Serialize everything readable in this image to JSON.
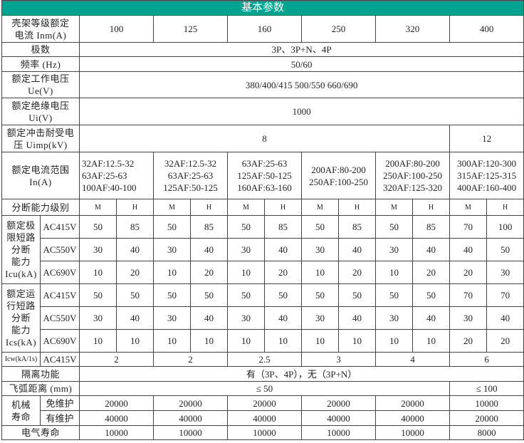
{
  "title": "基本参数",
  "frame": {
    "label": "壳架等级额定\n电流 Inm(A)",
    "values": [
      "100",
      "125",
      "160",
      "250",
      "320",
      "400"
    ]
  },
  "poles": {
    "label": "极数",
    "value": "3P、3P+N、4P"
  },
  "frequency": {
    "label": "频率 (Hz)",
    "value": "50/60"
  },
  "ue": {
    "label": "额定工作电压\nUe(V)",
    "value": "380/400/415     500/550     660/690"
  },
  "ui": {
    "label": "额定绝缘电压\nUi(V)",
    "value": "1000"
  },
  "uimp": {
    "label": "额定冲击耐受电\n压 Uimp(kV)",
    "values": [
      "8",
      "12"
    ]
  },
  "current_range": {
    "label": "额定电流范围\nIn(A)",
    "values": [
      "32AF:12.5-32\n63AF:25-63\n100AF:40-100",
      "32AF:12.5-32\n63AF:25-63\n125AF:50-125",
      "63AF:25-63\n125AF:50-125\n160AF:63-160",
      "200AF:80-200\n250AF:100-250",
      "200AF:80-200\n250AF:100-250\n320AF:125-320",
      "300AF:120-300\n315AF:125-315\n400AF:160-400"
    ]
  },
  "breaking_class": {
    "label": "分断能力级别",
    "values": [
      "M",
      "H",
      "M",
      "H",
      "M",
      "H",
      "M",
      "H",
      "M",
      "H",
      "M",
      "H"
    ]
  },
  "icu": {
    "label": "额定极\n限短路\n分断\n能力\nIcu(kA)",
    "rows": [
      {
        "voltage": "AC415V",
        "values": [
          "50",
          "85",
          "50",
          "85",
          "50",
          "85",
          "50",
          "85",
          "50",
          "85",
          "70",
          "100"
        ]
      },
      {
        "voltage": "AC550V",
        "values": [
          "30",
          "40",
          "30",
          "40",
          "30",
          "40",
          "30",
          "40",
          "30",
          "40",
          "40",
          "50"
        ]
      },
      {
        "voltage": "AC690V",
        "values": [
          "10",
          "20",
          "10",
          "20",
          "10",
          "20",
          "10",
          "20",
          "10",
          "20",
          "20",
          "30"
        ]
      }
    ]
  },
  "ics": {
    "label": "额定运\n行短路\n分断\n能力\nIcs(kA)",
    "rows": [
      {
        "voltage": "AC415V",
        "values": [
          "50",
          "50",
          "50",
          "50",
          "50",
          "50",
          "50",
          "50",
          "50",
          "50",
          "70",
          "70"
        ]
      },
      {
        "voltage": "AC550V",
        "values": [
          "30",
          "40",
          "30",
          "40",
          "30",
          "40",
          "30",
          "40",
          "30",
          "40",
          "30",
          "40"
        ]
      },
      {
        "voltage": "AC690V",
        "values": [
          "10",
          "10",
          "10",
          "10",
          "10",
          "10",
          "10",
          "10",
          "10",
          "10",
          "20",
          "20"
        ]
      }
    ]
  },
  "icw": {
    "label": "Icw(kA/1s)",
    "voltage": "AC415V",
    "values": [
      "2",
      "2",
      "2.5",
      "3",
      "4",
      "6"
    ]
  },
  "isolation": {
    "label": "隔离功能",
    "value": "有（3P、4P），无（3P+N）"
  },
  "arc_distance": {
    "label": "飞弧距离 (mm)",
    "values": [
      "≤ 50",
      "≤ 100"
    ]
  },
  "mechanical_life": {
    "label": "机械\n寿命",
    "rows": [
      {
        "label": "免维护",
        "values": [
          "20000",
          "20000",
          "20000",
          "20000",
          "20000",
          "10000"
        ]
      },
      {
        "label": "有维护",
        "values": [
          "40000",
          "40000",
          "40000",
          "40000",
          "40000",
          "20000"
        ]
      }
    ]
  },
  "electrical_life": {
    "label": "电气寿命",
    "values": [
      "10000",
      "10000",
      "10000",
      "10000",
      "10000",
      "8000"
    ]
  }
}
